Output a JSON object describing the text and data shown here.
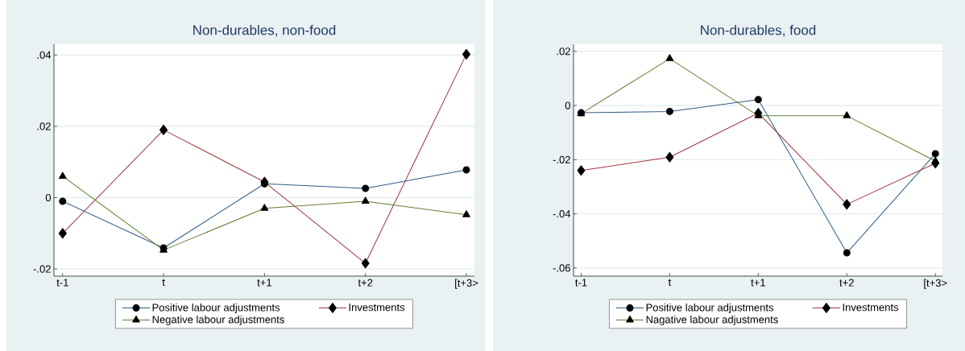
{
  "chart_data": [
    {
      "type": "line",
      "title": "Non-durables, non-food",
      "categories": [
        "t-1",
        "t",
        "t+1",
        "t+2",
        "[t+3>"
      ],
      "series": [
        {
          "name": "Positive labour adjustments",
          "color": "#2f5b85",
          "marker": "circle",
          "values": [
            -0.001,
            -0.0141,
            0.0039,
            0.0026,
            0.0078
          ]
        },
        {
          "name": "Investments",
          "color": "#a0393f",
          "marker": "diamond",
          "values": [
            -0.01,
            0.019,
            0.0044,
            -0.0184,
            0.0402
          ]
        },
        {
          "name": "Negative labour adjustments",
          "color": "#5e7f2b",
          "marker": "triangle",
          "values": [
            0.006,
            -0.0147,
            -0.003,
            -0.001,
            -0.0048
          ]
        }
      ],
      "ylim": [
        -0.022,
        0.043
      ],
      "yticks": [
        {
          "value": -0.02,
          "label": "-.02"
        },
        0,
        {
          "value": 0.02,
          "label": ".02"
        },
        {
          "value": 0.04,
          "label": ".04"
        }
      ],
      "grid": "y",
      "legend": "bottom"
    },
    {
      "type": "line",
      "title": "Non-durables, food",
      "categories": [
        "t-1",
        "t",
        "t+1",
        "t+2",
        "[t+3>"
      ],
      "series": [
        {
          "name": "Positive labour adjustments",
          "color": "#2f5b85",
          "marker": "circle",
          "values": [
            -0.0027,
            -0.0022,
            0.0022,
            -0.0544,
            -0.0178
          ]
        },
        {
          "name": "Investments",
          "color": "#a0393f",
          "marker": "diamond",
          "values": [
            -0.024,
            -0.0191,
            -0.0028,
            -0.0365,
            -0.0213
          ]
        },
        {
          "name": "Nagative labour adjustments",
          "color": "#5e7f2b",
          "marker": "triangle",
          "values": [
            -0.003,
            0.0173,
            -0.0038,
            -0.0038,
            -0.0205
          ]
        }
      ],
      "ylim": [
        -0.063,
        0.0226
      ],
      "yticks": [
        {
          "value": -0.06,
          "label": "-.06"
        },
        {
          "value": -0.04,
          "label": "-.04"
        },
        {
          "value": -0.02,
          "label": "-.02"
        },
        0,
        {
          "value": 0.02,
          "label": ".02"
        }
      ],
      "grid": "y",
      "legend": "bottom"
    }
  ]
}
